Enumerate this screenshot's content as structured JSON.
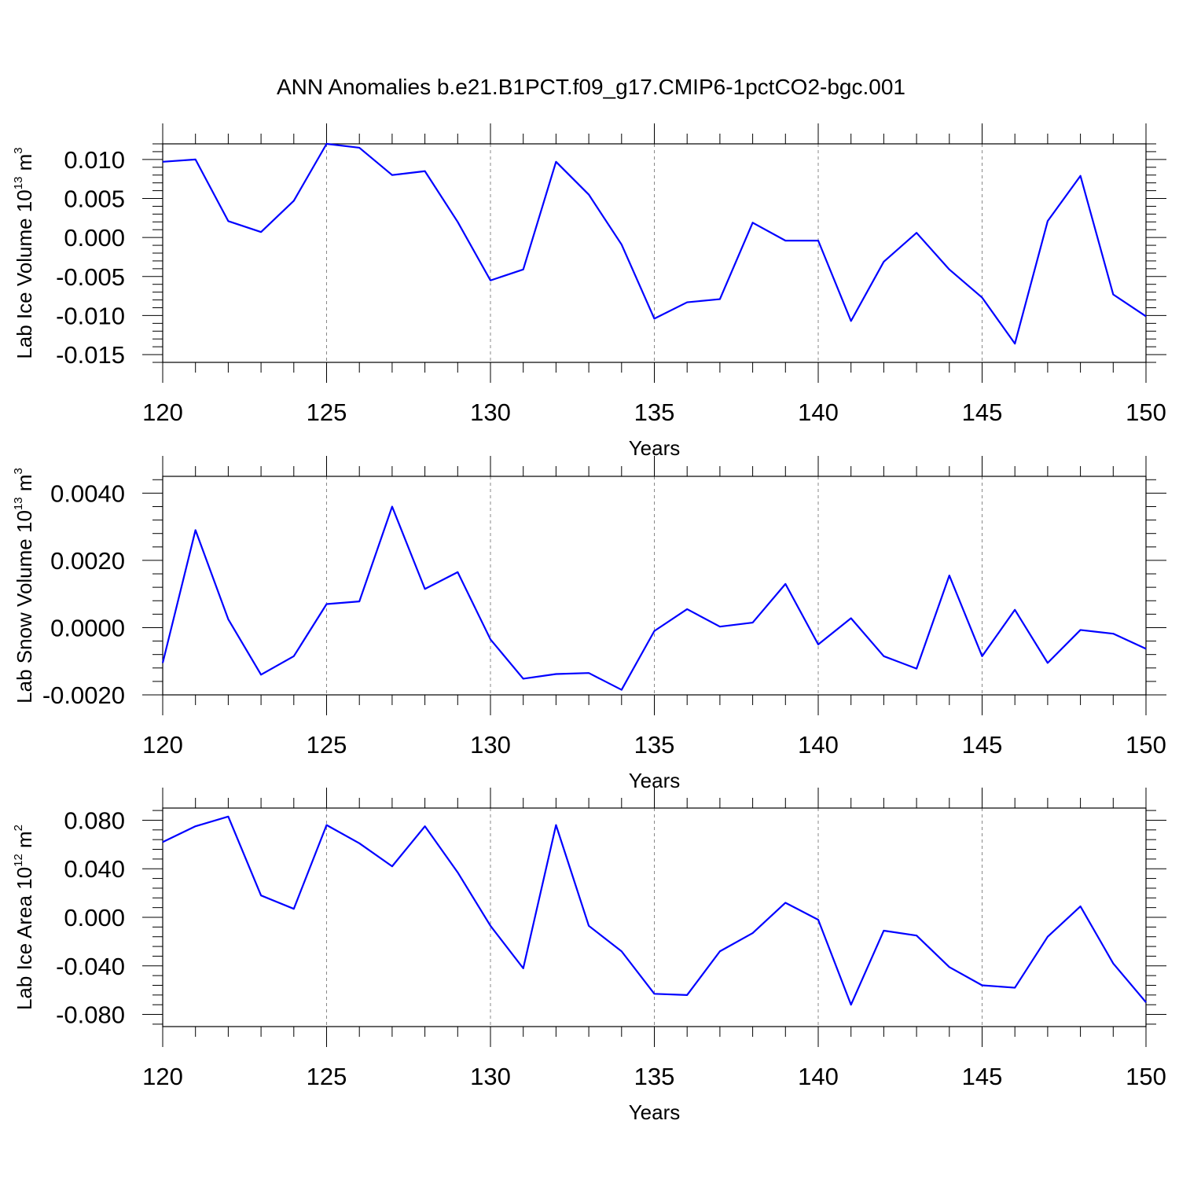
{
  "title": "ANN Anomalies b.e21.B1PCT.f09_g17.CMIP6-1pctCO2-bgc.001",
  "line_color": "#0000ff",
  "chart_data": [
    {
      "type": "line",
      "xlabel": "Years",
      "ylabel": {
        "base": "Lab Ice Volume 10",
        "sup1": "13",
        "mid": " m",
        "sup2": "3"
      },
      "xlim": [
        120,
        150
      ],
      "ylim": [
        -0.016,
        0.012
      ],
      "xticks": [
        120,
        125,
        130,
        135,
        140,
        145,
        150
      ],
      "xtick_labels": [
        "120",
        "125",
        "130",
        "135",
        "140",
        "145",
        "150"
      ],
      "yticks": [
        -0.015,
        -0.01,
        -0.005,
        0.0,
        0.005,
        0.01
      ],
      "ytick_labels": [
        "-0.015",
        "-0.010",
        "-0.005",
        "0.000",
        "0.005",
        "0.010"
      ],
      "grid": "vertical-dashed",
      "x": [
        120,
        121,
        122,
        123,
        124,
        125,
        126,
        127,
        128,
        129,
        130,
        131,
        132,
        133,
        134,
        135,
        136,
        137,
        138,
        139,
        140,
        141,
        142,
        143,
        144,
        145,
        146,
        147,
        148,
        149,
        150
      ],
      "values": [
        0.0097,
        0.01,
        0.0021,
        0.0007,
        0.0047,
        0.012,
        0.0115,
        0.008,
        0.0085,
        0.002,
        -0.0055,
        -0.0041,
        0.0097,
        0.0055,
        -0.0009,
        -0.0104,
        -0.0083,
        -0.0079,
        0.0019,
        -0.0004,
        -0.0004,
        -0.0107,
        -0.0031,
        0.0006,
        -0.0041,
        -0.0077,
        -0.0136,
        0.0021,
        0.0079,
        -0.0073,
        -0.0101
      ]
    },
    {
      "type": "line",
      "xlabel": "Years",
      "ylabel": {
        "base": "Lab Snow Volume 10",
        "sup1": "13",
        "mid": " m",
        "sup2": "3"
      },
      "xlim": [
        120,
        150
      ],
      "ylim": [
        -0.002,
        0.0045
      ],
      "xticks": [
        120,
        125,
        130,
        135,
        140,
        145,
        150
      ],
      "xtick_labels": [
        "120",
        "125",
        "130",
        "135",
        "140",
        "145",
        "150"
      ],
      "yticks": [
        -0.002,
        0.0,
        0.002,
        0.004
      ],
      "ytick_labels": [
        "-0.0020",
        "0.0000",
        "0.0020",
        "0.0040"
      ],
      "grid": "vertical-dashed",
      "x": [
        120,
        121,
        122,
        123,
        124,
        125,
        126,
        127,
        128,
        129,
        130,
        131,
        132,
        133,
        134,
        135,
        136,
        137,
        138,
        139,
        140,
        141,
        142,
        143,
        144,
        145,
        146,
        147,
        148,
        149,
        150
      ],
      "values": [
        -0.00105,
        0.0029,
        0.00025,
        -0.0014,
        -0.00085,
        0.0007,
        0.00078,
        0.0036,
        0.00115,
        0.00165,
        -0.00035,
        -0.00152,
        -0.00138,
        -0.00135,
        -0.00185,
        -0.0001,
        0.00055,
        3e-05,
        0.00015,
        0.0013,
        -0.0005,
        0.00028,
        -0.00085,
        -0.00122,
        0.00155,
        -0.00085,
        0.00053,
        -0.00105,
        -7e-05,
        -0.00018,
        -0.00063
      ]
    },
    {
      "type": "line",
      "xlabel": "Years",
      "ylabel": {
        "base": "Lab Ice Area 10",
        "sup1": "12",
        "mid": " m",
        "sup2": "2"
      },
      "xlim": [
        120,
        150
      ],
      "ylim": [
        -0.09,
        0.09
      ],
      "xticks": [
        120,
        125,
        130,
        135,
        140,
        145,
        150
      ],
      "xtick_labels": [
        "120",
        "125",
        "130",
        "135",
        "140",
        "145",
        "150"
      ],
      "yticks": [
        -0.08,
        -0.04,
        0.0,
        0.04,
        0.08
      ],
      "ytick_labels": [
        "-0.080",
        "-0.040",
        "0.000",
        "0.040",
        "0.080"
      ],
      "grid": "vertical-dashed",
      "x": [
        120,
        121,
        122,
        123,
        124,
        125,
        126,
        127,
        128,
        129,
        130,
        131,
        132,
        133,
        134,
        135,
        136,
        137,
        138,
        139,
        140,
        141,
        142,
        143,
        144,
        145,
        146,
        147,
        148,
        149,
        150
      ],
      "values": [
        0.062,
        0.075,
        0.083,
        0.018,
        0.007,
        0.076,
        0.061,
        0.042,
        0.075,
        0.037,
        -0.007,
        -0.042,
        0.076,
        -0.007,
        -0.028,
        -0.063,
        -0.064,
        -0.028,
        -0.013,
        0.012,
        -0.002,
        -0.072,
        -0.011,
        -0.015,
        -0.041,
        -0.056,
        -0.058,
        -0.016,
        0.009,
        -0.038,
        -0.07
      ]
    }
  ]
}
